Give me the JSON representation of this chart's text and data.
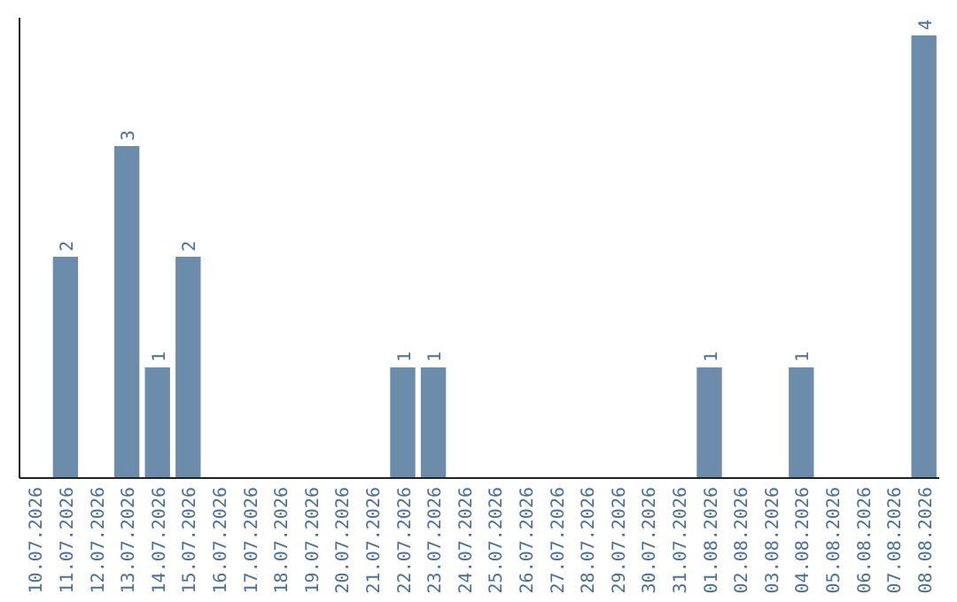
{
  "chart_data": {
    "type": "bar",
    "categories": [
      "10.07.2026",
      "11.07.2026",
      "12.07.2026",
      "13.07.2026",
      "14.07.2026",
      "15.07.2026",
      "16.07.2026",
      "17.07.2026",
      "18.07.2026",
      "19.07.2026",
      "20.07.2026",
      "21.07.2026",
      "22.07.2026",
      "23.07.2026",
      "24.07.2026",
      "25.07.2026",
      "26.07.2026",
      "27.07.2026",
      "28.07.2026",
      "29.07.2026",
      "30.07.2026",
      "31.07.2026",
      "01.08.2026",
      "02.08.2026",
      "03.08.2026",
      "04.08.2026",
      "05.08.2026",
      "06.08.2026",
      "07.08.2026",
      "08.08.2026"
    ],
    "values": [
      0,
      2,
      0,
      3,
      1,
      2,
      0,
      0,
      0,
      0,
      0,
      0,
      1,
      1,
      0,
      0,
      0,
      0,
      0,
      0,
      0,
      0,
      1,
      0,
      0,
      1,
      0,
      0,
      0,
      4
    ],
    "value_labels": [
      null,
      "2",
      null,
      "3",
      "1",
      "2",
      null,
      null,
      null,
      null,
      null,
      null,
      "1",
      "1",
      null,
      null,
      null,
      null,
      null,
      null,
      null,
      null,
      "1",
      null,
      null,
      "1",
      null,
      null,
      null,
      "4"
    ],
    "color": "#6b8cab",
    "ylim": [
      0,
      4.16
    ],
    "tick_labels": "x"
  }
}
